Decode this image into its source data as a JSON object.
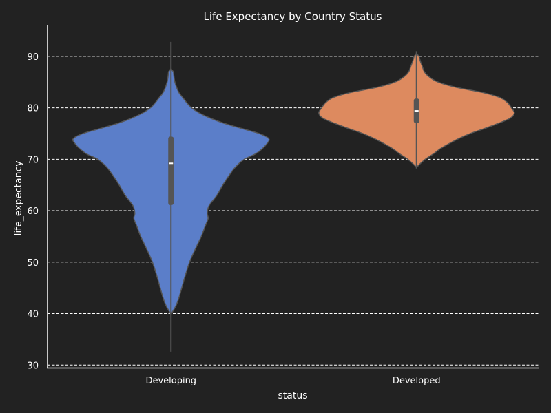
{
  "chart_data": {
    "type": "violin",
    "title": "Life Expectancy by Country Status",
    "xlabel": "status",
    "ylabel": "life_expectancy",
    "categories": [
      "Developing",
      "Developed"
    ],
    "ylim": [
      29.5,
      96
    ],
    "yticks": [
      30,
      40,
      50,
      60,
      70,
      80,
      90
    ],
    "grid": true,
    "colors": {
      "background": "#222222",
      "Developing": "#5b7ec9",
      "Developed": "#dd8a5f",
      "box": "#555555",
      "grid": "#ffffff"
    },
    "series": [
      {
        "name": "Developing",
        "min": 36.3,
        "q1": 61.1,
        "median": 69.2,
        "q3": 74.4,
        "max": 89.0,
        "density": [
          [
            32.6,
            0.0
          ],
          [
            36.0,
            0.0
          ],
          [
            39.5,
            0.0
          ],
          [
            40.5,
            0.02
          ],
          [
            41.5,
            0.05
          ],
          [
            43.0,
            0.08
          ],
          [
            45.0,
            0.11
          ],
          [
            47.0,
            0.14
          ],
          [
            50.0,
            0.19
          ],
          [
            53.0,
            0.26
          ],
          [
            55.0,
            0.31
          ],
          [
            57.0,
            0.35
          ],
          [
            58.5,
            0.38
          ],
          [
            59.5,
            0.37
          ],
          [
            61.0,
            0.39
          ],
          [
            63.0,
            0.47
          ],
          [
            65.0,
            0.53
          ],
          [
            67.0,
            0.6
          ],
          [
            68.5,
            0.66
          ],
          [
            70.0,
            0.75
          ],
          [
            71.0,
            0.86
          ],
          [
            72.0,
            0.93
          ],
          [
            73.0,
            0.98
          ],
          [
            74.0,
            1.0
          ],
          [
            75.0,
            0.9
          ],
          [
            76.0,
            0.72
          ],
          [
            77.0,
            0.54
          ],
          [
            78.0,
            0.4
          ],
          [
            79.0,
            0.29
          ],
          [
            80.0,
            0.21
          ],
          [
            81.0,
            0.16
          ],
          [
            82.0,
            0.12
          ],
          [
            83.0,
            0.08
          ],
          [
            85.0,
            0.04
          ],
          [
            87.0,
            0.025
          ],
          [
            89.0,
            0.0
          ],
          [
            92.8,
            0.0
          ]
        ]
      },
      {
        "name": "Developed",
        "min": 70.5,
        "q1": 77.0,
        "median": 79.4,
        "q3": 81.8,
        "max": 89.0,
        "density": [
          [
            68.2,
            0.0
          ],
          [
            69.0,
            0.03
          ],
          [
            70.0,
            0.09
          ],
          [
            71.0,
            0.17
          ],
          [
            72.0,
            0.24
          ],
          [
            73.0,
            0.33
          ],
          [
            74.0,
            0.43
          ],
          [
            75.0,
            0.55
          ],
          [
            76.0,
            0.7
          ],
          [
            77.0,
            0.84
          ],
          [
            78.0,
            0.96
          ],
          [
            79.0,
            1.0
          ],
          [
            80.0,
            0.97
          ],
          [
            81.0,
            0.93
          ],
          [
            82.0,
            0.85
          ],
          [
            83.0,
            0.67
          ],
          [
            84.0,
            0.4
          ],
          [
            85.0,
            0.22
          ],
          [
            86.0,
            0.13
          ],
          [
            87.0,
            0.08
          ],
          [
            88.0,
            0.06
          ],
          [
            89.0,
            0.04
          ],
          [
            90.0,
            0.025
          ],
          [
            91.0,
            0.0
          ]
        ]
      }
    ]
  }
}
